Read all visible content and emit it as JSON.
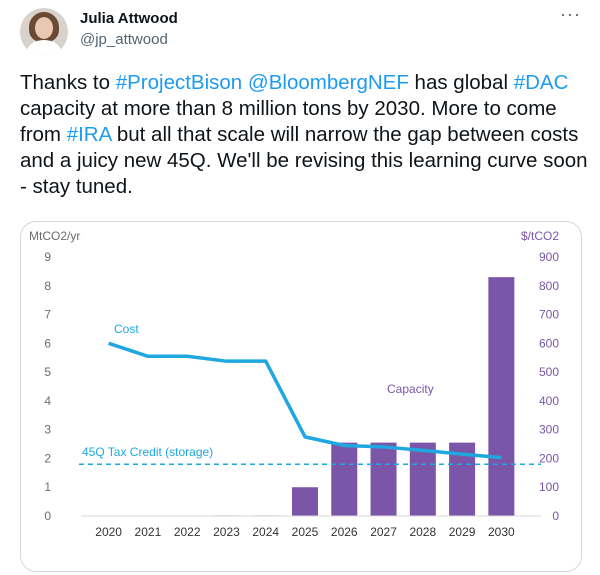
{
  "author": {
    "display_name": "Julia Attwood",
    "handle": "@jp_attwood"
  },
  "menu": {
    "more_label": "···"
  },
  "tweet": {
    "segments": [
      {
        "text": "Thanks to ",
        "hashtag": false
      },
      {
        "text": "#ProjectBison",
        "hashtag": true
      },
      {
        "text": " ",
        "hashtag": false
      },
      {
        "text": "@BloombergNEF",
        "hashtag": true
      },
      {
        "text": " has global ",
        "hashtag": false
      },
      {
        "text": "#DAC",
        "hashtag": true
      },
      {
        "text": " capacity at more than 8 million tons by 2030. More to come from ",
        "hashtag": false
      },
      {
        "text": "#IRA",
        "hashtag": true
      },
      {
        "text": " but all that scale will narrow the gap between costs and a juicy new 45Q. We'll be revising this learning curve soon - stay tuned.",
        "hashtag": false
      }
    ]
  },
  "chart_data": {
    "type": "bar",
    "categories": [
      "2020",
      "2021",
      "2022",
      "2023",
      "2024",
      "2025",
      "2026",
      "2027",
      "2028",
      "2029",
      "2030"
    ],
    "y_left_label": "MtCO2/yr",
    "y_right_label": "$/tCO2",
    "y_left_ticks": [
      0,
      1,
      2,
      3,
      4,
      5,
      6,
      7,
      8,
      9
    ],
    "y_right_ticks": [
      0,
      100,
      200,
      300,
      400,
      500,
      600,
      700,
      800,
      900
    ],
    "ylim_left": [
      0,
      9
    ],
    "ylim_right": [
      0,
      900
    ],
    "series": [
      {
        "name": "Capacity",
        "kind": "bar",
        "axis": "left",
        "values": [
          0,
          0,
          0,
          0.02,
          0.02,
          1.0,
          2.55,
          2.55,
          2.55,
          2.55,
          8.3
        ]
      },
      {
        "name": "Cost",
        "kind": "line",
        "axis": "right",
        "values": [
          600,
          555,
          555,
          538,
          538,
          275,
          245,
          240,
          228,
          215,
          203
        ]
      }
    ],
    "reference_line": {
      "label": "45Q Tax Credit (storage)",
      "value": 180,
      "axis": "right"
    },
    "colors": {
      "bar": "#7b56a8",
      "line": "#1fa7e0",
      "axis_text": "#6c6c6c",
      "right_axis_text": "#7b56a8"
    },
    "grid": false
  }
}
